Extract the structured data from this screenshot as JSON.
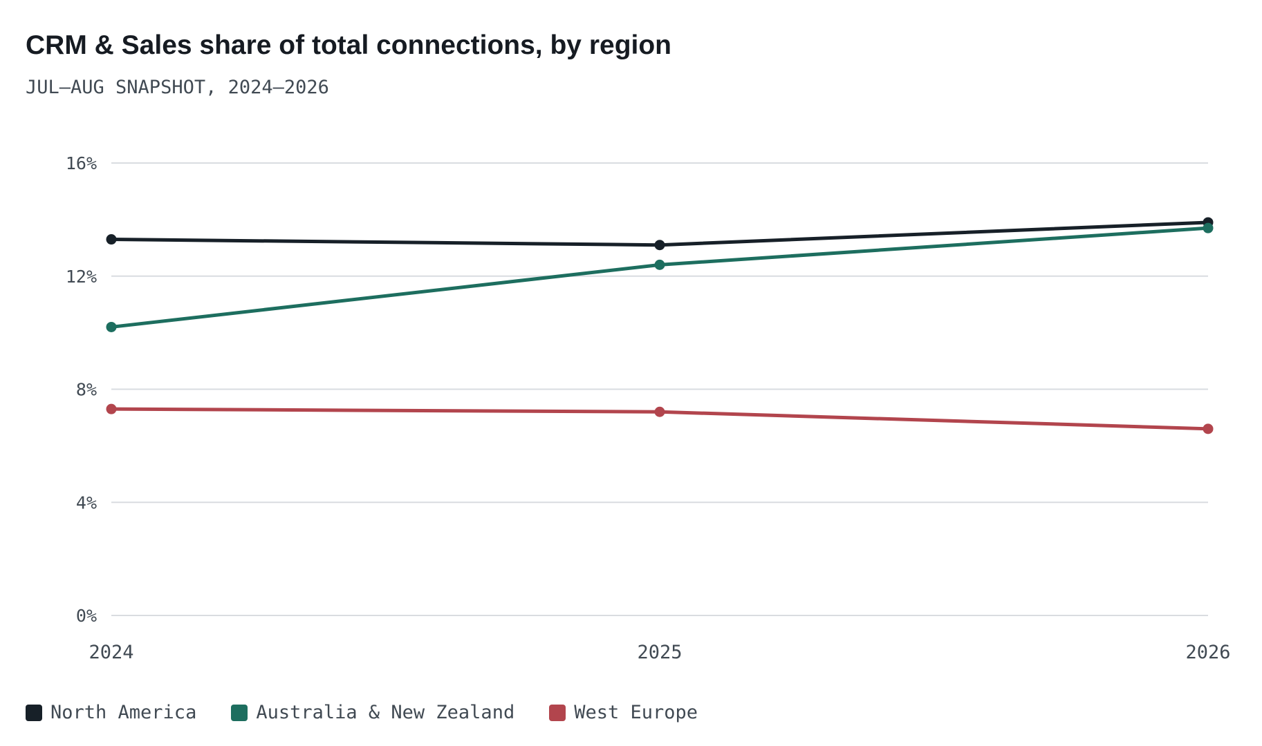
{
  "header": {
    "title": "CRM & Sales share of total connections, by region",
    "subtitle": "JUL—AUG SNAPSHOT, 2024—2026"
  },
  "chart_data": {
    "type": "line",
    "title": "CRM & Sales share of total connections, by region",
    "subtitle": "JUL—AUG SNAPSHOT, 2024—2026",
    "x": [
      "2024",
      "2025",
      "2026"
    ],
    "ylim": [
      0,
      16
    ],
    "yticks": [
      0,
      4,
      8,
      12,
      16
    ],
    "ytick_labels": [
      "0%",
      "4%",
      "8%",
      "12%",
      "16%"
    ],
    "grid": true,
    "legend_position": "bottom-left",
    "series": [
      {
        "name": "North America",
        "color": "#172028",
        "values": [
          13.3,
          13.1,
          13.9
        ]
      },
      {
        "name": "Australia & New Zealand",
        "color": "#1d6e5f",
        "values": [
          10.2,
          12.4,
          13.7
        ]
      },
      {
        "name": "West Europe",
        "color": "#b2454d",
        "values": [
          7.3,
          7.2,
          6.6
        ]
      }
    ]
  }
}
